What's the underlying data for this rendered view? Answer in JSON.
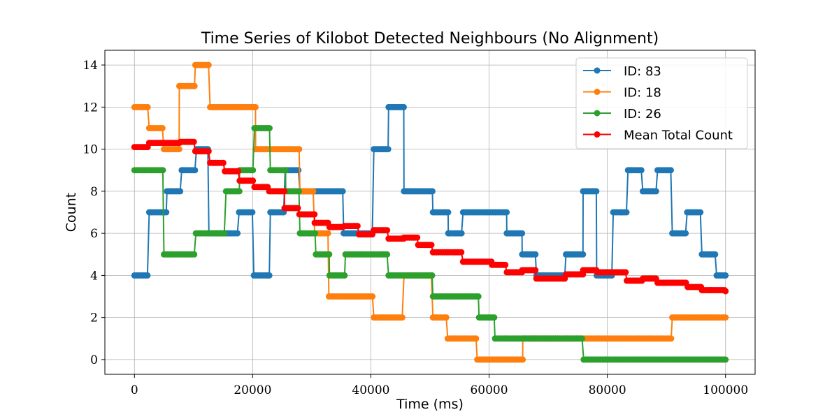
{
  "chart_data": {
    "type": "line",
    "title": "Time Series of Kilobot Detected Neighbours (No Alignment)",
    "xlabel": "Time (ms)",
    "ylabel": "Count",
    "xlim": [
      -5000,
      105000
    ],
    "ylim": [
      -0.7,
      14.7
    ],
    "xticks": [
      0,
      20000,
      40000,
      60000,
      80000,
      100000
    ],
    "yticks": [
      0,
      2,
      4,
      6,
      8,
      10,
      12,
      14
    ],
    "grid": true,
    "legend_position": "top-right",
    "sample_step": 320,
    "series": [
      {
        "name": "ID: 83",
        "color": "#1f77b4",
        "steps": [
          [
            0,
            4
          ],
          [
            600,
            4
          ],
          [
            2500,
            7
          ],
          [
            5500,
            8
          ],
          [
            8000,
            9
          ],
          [
            10500,
            10
          ],
          [
            12600,
            6
          ],
          [
            15500,
            6
          ],
          [
            17700,
            7
          ],
          [
            20200,
            4
          ],
          [
            22500,
            4
          ],
          [
            23000,
            7
          ],
          [
            25500,
            9
          ],
          [
            28000,
            8
          ],
          [
            30500,
            8
          ],
          [
            33000,
            8
          ],
          [
            35400,
            6
          ],
          [
            38000,
            6
          ],
          [
            40500,
            10
          ],
          [
            42600,
            10
          ],
          [
            43000,
            12
          ],
          [
            45600,
            8
          ],
          [
            50500,
            7
          ],
          [
            53100,
            6
          ],
          [
            55600,
            7
          ],
          [
            63000,
            6
          ],
          [
            65600,
            5
          ],
          [
            68000,
            4
          ],
          [
            73000,
            5
          ],
          [
            75900,
            8
          ],
          [
            78200,
            4
          ],
          [
            81000,
            7
          ],
          [
            83500,
            9
          ],
          [
            86000,
            8
          ],
          [
            88500,
            9
          ],
          [
            91000,
            6
          ],
          [
            93500,
            7
          ],
          [
            96000,
            5
          ],
          [
            98500,
            4
          ],
          [
            100000,
            4
          ]
        ]
      },
      {
        "name": "ID: 18",
        "color": "#ff7f0e",
        "steps": [
          [
            0,
            12
          ],
          [
            2500,
            11
          ],
          [
            5000,
            10
          ],
          [
            7600,
            13
          ],
          [
            10300,
            14
          ],
          [
            12800,
            12
          ],
          [
            20500,
            10
          ],
          [
            28000,
            8
          ],
          [
            30500,
            6
          ],
          [
            32900,
            3
          ],
          [
            40500,
            2
          ],
          [
            45600,
            4
          ],
          [
            48000,
            4
          ],
          [
            50500,
            2
          ],
          [
            53000,
            1
          ],
          [
            58000,
            0
          ],
          [
            65700,
            1
          ],
          [
            70000,
            1
          ],
          [
            91000,
            2
          ],
          [
            100000,
            2
          ]
        ]
      },
      {
        "name": "ID: 26",
        "color": "#2ca02c",
        "steps": [
          [
            0,
            9
          ],
          [
            5000,
            5
          ],
          [
            10400,
            6
          ],
          [
            15500,
            8
          ],
          [
            17800,
            9
          ],
          [
            20300,
            11
          ],
          [
            23000,
            9
          ],
          [
            25600,
            8
          ],
          [
            28000,
            6
          ],
          [
            30700,
            5
          ],
          [
            33000,
            4
          ],
          [
            35700,
            5
          ],
          [
            43000,
            4
          ],
          [
            50500,
            3
          ],
          [
            58300,
            2
          ],
          [
            61000,
            1
          ],
          [
            76000,
            0
          ],
          [
            100000,
            0
          ]
        ]
      },
      {
        "name": "Mean Total Count",
        "color": "#ff0000",
        "steps": [
          [
            0,
            10.1
          ],
          [
            2500,
            10.3
          ],
          [
            7800,
            10.35
          ],
          [
            10300,
            9.9
          ],
          [
            12800,
            9.35
          ],
          [
            15300,
            8.95
          ],
          [
            17800,
            8.5
          ],
          [
            20300,
            8.2
          ],
          [
            22800,
            8.0
          ],
          [
            25400,
            7.2
          ],
          [
            27900,
            6.9
          ],
          [
            30500,
            6.5
          ],
          [
            33000,
            6.3
          ],
          [
            35500,
            6.35
          ],
          [
            38000,
            5.95
          ],
          [
            40500,
            6.15
          ],
          [
            43000,
            5.75
          ],
          [
            45600,
            5.8
          ],
          [
            48000,
            5.45
          ],
          [
            50500,
            5.1
          ],
          [
            55600,
            4.65
          ],
          [
            60500,
            4.5
          ],
          [
            63000,
            4.15
          ],
          [
            65600,
            4.25
          ],
          [
            68000,
            3.85
          ],
          [
            73000,
            4.05
          ],
          [
            75900,
            4.25
          ],
          [
            78300,
            4.15
          ],
          [
            83300,
            3.75
          ],
          [
            86000,
            3.85
          ],
          [
            88500,
            3.65
          ],
          [
            93600,
            3.45
          ],
          [
            96000,
            3.3
          ],
          [
            100000,
            3.25
          ]
        ]
      }
    ]
  }
}
